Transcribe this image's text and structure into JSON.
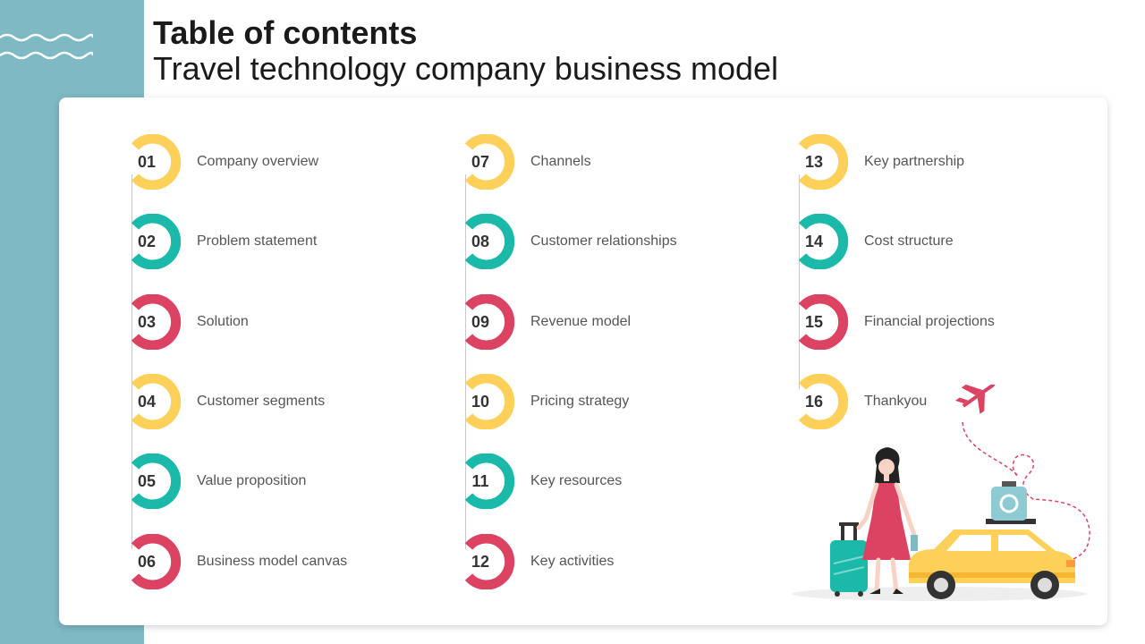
{
  "header": {
    "title": "Table of contents",
    "subtitle": "Travel technology company business model"
  },
  "colors": {
    "yellow": "#fdd05a",
    "teal": "#1ab9a9",
    "red": "#dc4262",
    "band": "#7fb9c3"
  },
  "columns": [
    {
      "items": [
        {
          "num": "01",
          "label": "Company overview",
          "color": "yellow"
        },
        {
          "num": "02",
          "label": "Problem statement",
          "color": "teal"
        },
        {
          "num": "03",
          "label": "Solution",
          "color": "red"
        },
        {
          "num": "04",
          "label": "Customer segments",
          "color": "yellow"
        },
        {
          "num": "05",
          "label": "Value proposition",
          "color": "teal"
        },
        {
          "num": "06",
          "label": "Business model canvas",
          "color": "red"
        }
      ]
    },
    {
      "items": [
        {
          "num": "07",
          "label": "Channels",
          "color": "yellow"
        },
        {
          "num": "08",
          "label": "Customer relationships",
          "color": "teal"
        },
        {
          "num": "09",
          "label": "Revenue model",
          "color": "red"
        },
        {
          "num": "10",
          "label": "Pricing strategy",
          "color": "yellow"
        },
        {
          "num": "11",
          "label": "Key resources",
          "color": "teal"
        },
        {
          "num": "12",
          "label": "Key activities",
          "color": "red"
        }
      ]
    },
    {
      "items": [
        {
          "num": "13",
          "label": "Key partnership",
          "color": "yellow"
        },
        {
          "num": "14",
          "label": "Cost structure",
          "color": "teal"
        },
        {
          "num": "15",
          "label": "Financial projections",
          "color": "red"
        },
        {
          "num": "16",
          "label": "Thankyou",
          "color": "yellow"
        }
      ]
    }
  ],
  "illustration": {
    "icons": [
      "woman-traveler-icon",
      "suitcase-icon",
      "taxi-car-icon",
      "airplane-icon",
      "luggage-icon"
    ]
  }
}
